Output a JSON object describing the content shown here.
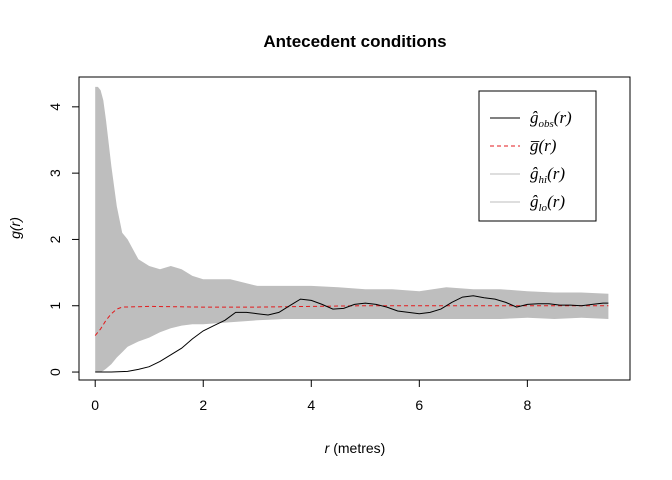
{
  "chart_data": {
    "type": "line",
    "title": "Antecedent conditions",
    "xlabel_var": "r",
    "xlabel_rest": " (metres)",
    "ylabel": "g(r)",
    "xlim": [
      -0.3,
      9.9
    ],
    "ylim": [
      -0.12,
      4.45
    ],
    "xticks": [
      0,
      2,
      4,
      6,
      8
    ],
    "yticks": [
      0,
      1,
      2,
      3,
      4
    ],
    "legend_position": "top-right",
    "legend": [
      {
        "key": "obs",
        "base": "ĝ",
        "sub": "obs",
        "rest": "(r)",
        "color": "#000000",
        "dash": "none"
      },
      {
        "key": "theo",
        "base": "g̅",
        "sub": "",
        "rest": "(r)",
        "color": "#e31a1c",
        "dash": "dashed"
      },
      {
        "key": "hi",
        "base": "ĝ",
        "sub": "hi",
        "rest": "(r)",
        "color": "#bebebe",
        "dash": "none"
      },
      {
        "key": "lo",
        "base": "ĝ",
        "sub": "lo",
        "rest": "(r)",
        "color": "#bebebe",
        "dash": "none"
      }
    ],
    "envelope_color": "#bebebe",
    "obs": {
      "x": [
        0,
        0.3,
        0.6,
        0.8,
        1.0,
        1.2,
        1.4,
        1.6,
        1.8,
        2.0,
        2.2,
        2.4,
        2.6,
        2.8,
        3.0,
        3.2,
        3.4,
        3.6,
        3.8,
        4.0,
        4.2,
        4.4,
        4.6,
        4.8,
        5.0,
        5.2,
        5.4,
        5.6,
        5.8,
        6.0,
        6.2,
        6.4,
        6.6,
        6.8,
        7.0,
        7.2,
        7.4,
        7.6,
        7.8,
        8.0,
        8.2,
        8.4,
        8.6,
        8.8,
        9.0,
        9.2,
        9.4,
        9.5
      ],
      "y": [
        0.0,
        0.0,
        0.01,
        0.04,
        0.08,
        0.16,
        0.26,
        0.36,
        0.5,
        0.62,
        0.7,
        0.78,
        0.9,
        0.9,
        0.88,
        0.86,
        0.9,
        1.0,
        1.1,
        1.08,
        1.02,
        0.95,
        0.96,
        1.02,
        1.04,
        1.02,
        0.98,
        0.92,
        0.9,
        0.88,
        0.9,
        0.95,
        1.05,
        1.13,
        1.15,
        1.12,
        1.1,
        1.05,
        0.98,
        1.02,
        1.03,
        1.03,
        1.01,
        1.01,
        1.0,
        1.02,
        1.04,
        1.04
      ]
    },
    "theo": {
      "x": [
        0,
        0.1,
        0.2,
        0.3,
        0.4,
        0.5,
        1.0,
        2.0,
        3.0,
        4.0,
        5.0,
        6.0,
        7.0,
        8.0,
        9.0,
        9.5
      ],
      "y": [
        0.55,
        0.65,
        0.78,
        0.88,
        0.95,
        0.98,
        0.99,
        0.98,
        0.98,
        0.99,
        1.0,
        1.0,
        1.0,
        1.0,
        1.0,
        1.0
      ]
    },
    "envelope": {
      "x": [
        0,
        0.05,
        0.1,
        0.15,
        0.2,
        0.3,
        0.4,
        0.5,
        0.6,
        0.8,
        1.0,
        1.2,
        1.4,
        1.6,
        1.8,
        2.0,
        2.5,
        3.0,
        3.5,
        4.0,
        4.5,
        5.0,
        5.5,
        6.0,
        6.5,
        7.0,
        7.5,
        8.0,
        8.5,
        9.0,
        9.5
      ],
      "hi": [
        4.3,
        4.3,
        4.25,
        4.1,
        3.8,
        3.1,
        2.5,
        2.1,
        2.0,
        1.7,
        1.6,
        1.55,
        1.6,
        1.55,
        1.45,
        1.4,
        1.4,
        1.3,
        1.3,
        1.3,
        1.28,
        1.25,
        1.25,
        1.22,
        1.28,
        1.25,
        1.25,
        1.22,
        1.2,
        1.2,
        1.18
      ],
      "lo": [
        0.0,
        0.0,
        0.0,
        0.02,
        0.05,
        0.12,
        0.22,
        0.3,
        0.38,
        0.46,
        0.52,
        0.6,
        0.66,
        0.7,
        0.72,
        0.72,
        0.75,
        0.78,
        0.8,
        0.8,
        0.8,
        0.8,
        0.8,
        0.8,
        0.8,
        0.8,
        0.8,
        0.82,
        0.8,
        0.82,
        0.8
      ]
    }
  }
}
